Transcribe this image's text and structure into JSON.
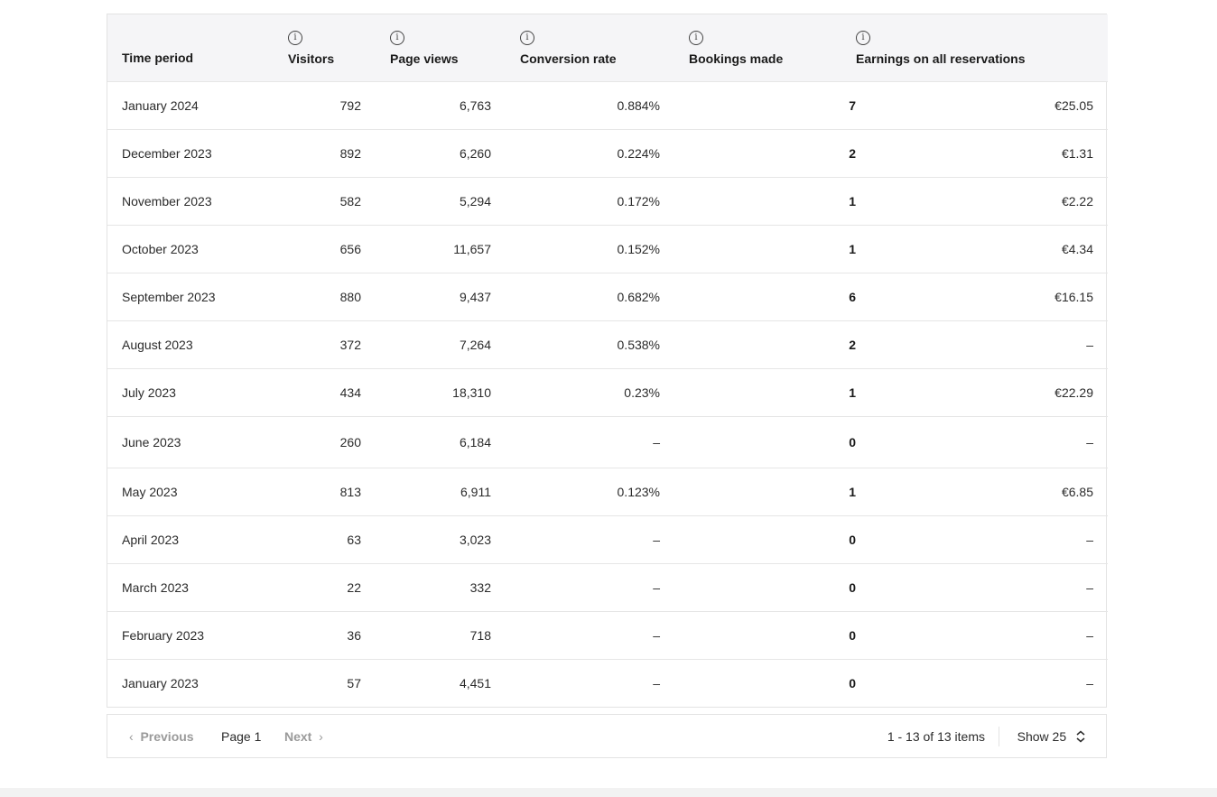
{
  "table": {
    "headers": {
      "time_period": "Time period",
      "visitors": "Visitors",
      "page_views": "Page views",
      "conversion_rate": "Conversion rate",
      "bookings_made": "Bookings made",
      "earnings": "Earnings on all reservations"
    },
    "info_icon": "info-icon",
    "rows": [
      {
        "period": "January 2024",
        "visitors": "792",
        "page_views": "6,763",
        "conversion": "0.884%",
        "bookings": "7",
        "earnings": "€25.05"
      },
      {
        "period": "December 2023",
        "visitors": "892",
        "page_views": "6,260",
        "conversion": "0.224%",
        "bookings": "2",
        "earnings": "€1.31"
      },
      {
        "period": "November 2023",
        "visitors": "582",
        "page_views": "5,294",
        "conversion": "0.172%",
        "bookings": "1",
        "earnings": "€2.22"
      },
      {
        "period": "October 2023",
        "visitors": "656",
        "page_views": "11,657",
        "conversion": "0.152%",
        "bookings": "1",
        "earnings": "€4.34"
      },
      {
        "period": "September 2023",
        "visitors": "880",
        "page_views": "9,437",
        "conversion": "0.682%",
        "bookings": "6",
        "earnings": "€16.15"
      },
      {
        "period": "August 2023",
        "visitors": "372",
        "page_views": "7,264",
        "conversion": "0.538%",
        "bookings": "2",
        "earnings": "–"
      },
      {
        "period": "July 2023",
        "visitors": "434",
        "page_views": "18,310",
        "conversion": "0.23%",
        "bookings": "1",
        "earnings": "€22.29"
      },
      {
        "period": "June 2023",
        "visitors": "260",
        "page_views": "6,184",
        "conversion": "–",
        "bookings": "0",
        "earnings": "–"
      },
      {
        "period": "May 2023",
        "visitors": "813",
        "page_views": "6,911",
        "conversion": "0.123%",
        "bookings": "1",
        "earnings": "€6.85"
      },
      {
        "period": "April 2023",
        "visitors": "63",
        "page_views": "3,023",
        "conversion": "–",
        "bookings": "0",
        "earnings": "–"
      },
      {
        "period": "March 2023",
        "visitors": "22",
        "page_views": "332",
        "conversion": "–",
        "bookings": "0",
        "earnings": "–"
      },
      {
        "period": "February 2023",
        "visitors": "36",
        "page_views": "718",
        "conversion": "–",
        "bookings": "0",
        "earnings": "–"
      },
      {
        "period": "January 2023",
        "visitors": "57",
        "page_views": "4,451",
        "conversion": "–",
        "bookings": "0",
        "earnings": "–"
      }
    ]
  },
  "pagination": {
    "previous_label": "Previous",
    "page_label": "Page 1",
    "next_label": "Next",
    "item_count": "1 - 13 of 13 items",
    "show_label": "Show 25"
  }
}
